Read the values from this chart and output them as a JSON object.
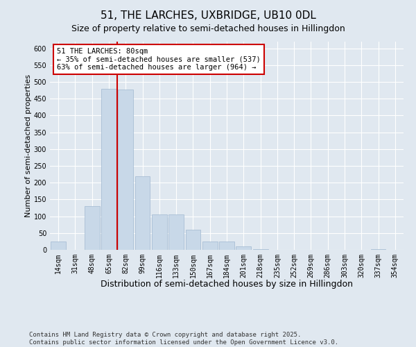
{
  "title_line1": "51, THE LARCHES, UXBRIDGE, UB10 0DL",
  "title_line2": "Size of property relative to semi-detached houses in Hillingdon",
  "xlabel": "Distribution of semi-detached houses by size in Hillingdon",
  "ylabel": "Number of semi-detached properties",
  "categories": [
    "14sqm",
    "31sqm",
    "48sqm",
    "65sqm",
    "82sqm",
    "99sqm",
    "116sqm",
    "133sqm",
    "150sqm",
    "167sqm",
    "184sqm",
    "201sqm",
    "218sqm",
    "235sqm",
    "252sqm",
    "269sqm",
    "286sqm",
    "303sqm",
    "320sqm",
    "337sqm",
    "354sqm"
  ],
  "values": [
    25,
    0,
    130,
    480,
    478,
    220,
    105,
    105,
    60,
    25,
    25,
    10,
    2,
    1,
    0,
    0,
    0,
    0,
    0,
    3,
    0
  ],
  "bar_color": "#c8d8e8",
  "bar_edge_color": "#a0b8d0",
  "vline_color": "#cc0000",
  "vline_x_index": 3.5,
  "annotation_text": "51 THE LARCHES: 80sqm\n← 35% of semi-detached houses are smaller (537)\n63% of semi-detached houses are larger (964) →",
  "annotation_box_color": "#ffffff",
  "annotation_box_edge_color": "#cc0000",
  "ylim": [
    0,
    620
  ],
  "yticks": [
    0,
    50,
    100,
    150,
    200,
    250,
    300,
    350,
    400,
    450,
    500,
    550,
    600
  ],
  "background_color": "#e0e8f0",
  "plot_bg_color": "#e0e8f0",
  "footnote": "Contains HM Land Registry data © Crown copyright and database right 2025.\nContains public sector information licensed under the Open Government Licence v3.0.",
  "title_fontsize": 11,
  "subtitle_fontsize": 9,
  "xlabel_fontsize": 9,
  "ylabel_fontsize": 8,
  "tick_fontsize": 7,
  "annotation_fontsize": 7.5,
  "footnote_fontsize": 6.5
}
